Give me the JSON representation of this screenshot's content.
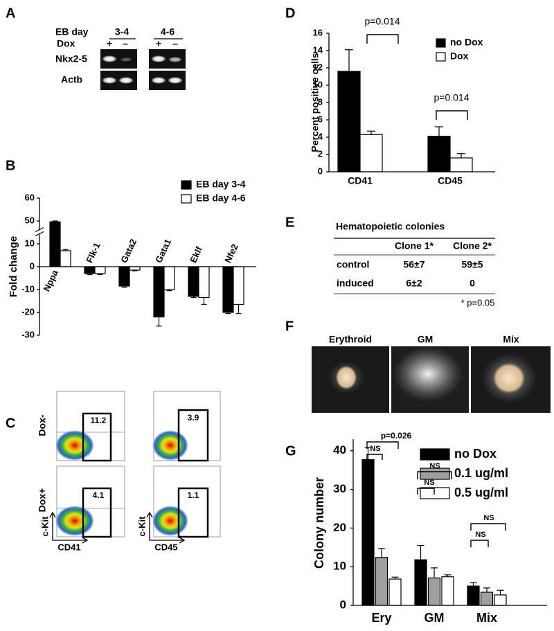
{
  "gel": {
    "panel": "A",
    "header_label": "EB day",
    "groups": [
      "3-4",
      "4-6"
    ],
    "dox_label": "Dox",
    "dox_signs": [
      "+",
      "–",
      "+",
      "–"
    ],
    "rows": [
      "Nkx2-5",
      "Actb"
    ]
  },
  "flow": {
    "panel": "C",
    "rows": [
      "Dox-",
      "Dox+"
    ],
    "y_label": "c-Kit",
    "x_labels": [
      "CD41",
      "CD45"
    ],
    "gates": [
      [
        11.2,
        3.9
      ],
      [
        4.1,
        1.1
      ]
    ]
  },
  "table": {
    "panel": "E",
    "title": "Hematopoietic colonies",
    "headers": [
      "Clone 1*",
      "Clone 2*"
    ],
    "rows": [
      [
        "control",
        "56±7",
        "59±5"
      ],
      [
        "induced",
        "6±2",
        "0"
      ]
    ],
    "footnote": "* p=0.05"
  },
  "images": {
    "panel": "F",
    "labels": [
      "Erythroid",
      "GM",
      "Mix"
    ]
  },
  "chart_data": [
    {
      "type": "bar",
      "panel": "B",
      "ylabel": "Fold change",
      "categories": [
        "Nppa",
        "Flk-1",
        "Gata2",
        "Gata1",
        "Eklf",
        "Nfe2"
      ],
      "series": [
        {
          "name": "EB day 3-4",
          "color": "#000000",
          "values": [
            48.5,
            -3,
            -8.5,
            -22,
            -13,
            -20
          ],
          "errors": [
            1.5,
            0.5,
            0.5,
            4,
            0.5,
            0.5
          ]
        },
        {
          "name": "EB day 4-6",
          "color": "#ffffff",
          "values": [
            7,
            -3,
            -1.5,
            -10,
            -13.5,
            -16.5
          ],
          "errors": [
            0.5,
            0.5,
            0.3,
            0.5,
            3,
            4
          ]
        }
      ],
      "ylim": [
        -30,
        60
      ],
      "yticks": [
        -30,
        -20,
        -10,
        0,
        10,
        50,
        60
      ],
      "axis_break": true,
      "legend": "upper right"
    },
    {
      "type": "bar",
      "panel": "D",
      "ylabel": "Percent positive cells",
      "categories": [
        "CD41",
        "CD45"
      ],
      "series": [
        {
          "name": "no Dox",
          "color": "#000000",
          "values": [
            11.6,
            4.1
          ],
          "errors": [
            2.5,
            1.1
          ]
        },
        {
          "name": "Dox",
          "color": "#ffffff",
          "values": [
            4.3,
            1.6
          ],
          "errors": [
            0.4,
            0.5
          ]
        }
      ],
      "ylim": [
        0,
        16
      ],
      "yticks": [
        0,
        2,
        4,
        6,
        8,
        10,
        12,
        14,
        16
      ],
      "legend": "upper right",
      "annotations": [
        "p=0.014",
        "p=0.014"
      ]
    },
    {
      "type": "bar",
      "panel": "G",
      "ylabel": "Colony  number",
      "categories": [
        "Ery",
        "GM",
        "Mix"
      ],
      "series": [
        {
          "name": "no Dox",
          "color": "#000000",
          "values": [
            37.7,
            11.8,
            5.0
          ],
          "errors": [
            3.2,
            3.7,
            0.9
          ]
        },
        {
          "name": "0.1 ug/ml",
          "color": "#a0a0a0",
          "values": [
            12.4,
            7.1,
            3.4
          ],
          "errors": [
            2.3,
            2.6,
            1.1
          ]
        },
        {
          "name": "0.5 ug/ml",
          "color": "#ffffff",
          "values": [
            6.8,
            7.4,
            2.7
          ],
          "errors": [
            0.5,
            0.5,
            1.2
          ]
        }
      ],
      "ylim": [
        0,
        43
      ],
      "yticks": [
        0,
        10,
        20,
        30,
        40
      ],
      "legend": "upper right",
      "annotations": [
        "p=0.026",
        "NS",
        "NS",
        "NS",
        "NS",
        "NS"
      ]
    }
  ]
}
